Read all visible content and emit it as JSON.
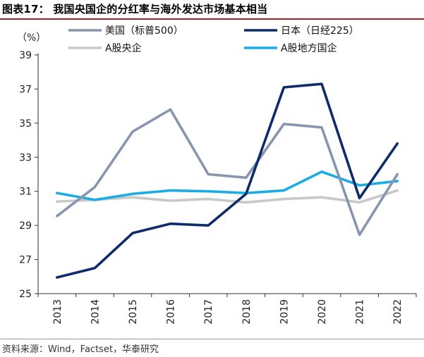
{
  "title": "图表17：  我国央国企的分红率与海外发达市场基本相当",
  "source": "资料来源：Wind，Factset，华泰研究",
  "chart_data": {
    "type": "line",
    "ylabel": "（%）",
    "ylim": [
      25,
      39
    ],
    "yticks": [
      25,
      27,
      29,
      31,
      33,
      35,
      37,
      39
    ],
    "categories": [
      "2013",
      "2014",
      "2015",
      "2016",
      "2017",
      "2018",
      "2019",
      "2020",
      "2021",
      "2022"
    ],
    "series": [
      {
        "name": "美国（标普500）",
        "color": "#8796ae",
        "values": [
          29.55,
          31.25,
          34.5,
          35.8,
          32.0,
          31.8,
          34.95,
          34.75,
          28.45,
          32.0
        ]
      },
      {
        "name": "日本（日经225）",
        "color": "#0e2c6b",
        "values": [
          25.95,
          26.5,
          28.55,
          29.1,
          29.0,
          30.85,
          37.1,
          37.3,
          30.6,
          33.8
        ]
      },
      {
        "name": "A股央企",
        "color": "#c8c8c8",
        "values": [
          30.4,
          30.5,
          30.65,
          30.45,
          30.55,
          30.35,
          30.55,
          30.65,
          30.35,
          31.05
        ]
      },
      {
        "name": "A股地方国企",
        "color": "#1aace6",
        "values": [
          30.9,
          30.5,
          30.85,
          31.05,
          31.0,
          30.9,
          31.05,
          32.15,
          31.35,
          31.6
        ]
      }
    ]
  }
}
